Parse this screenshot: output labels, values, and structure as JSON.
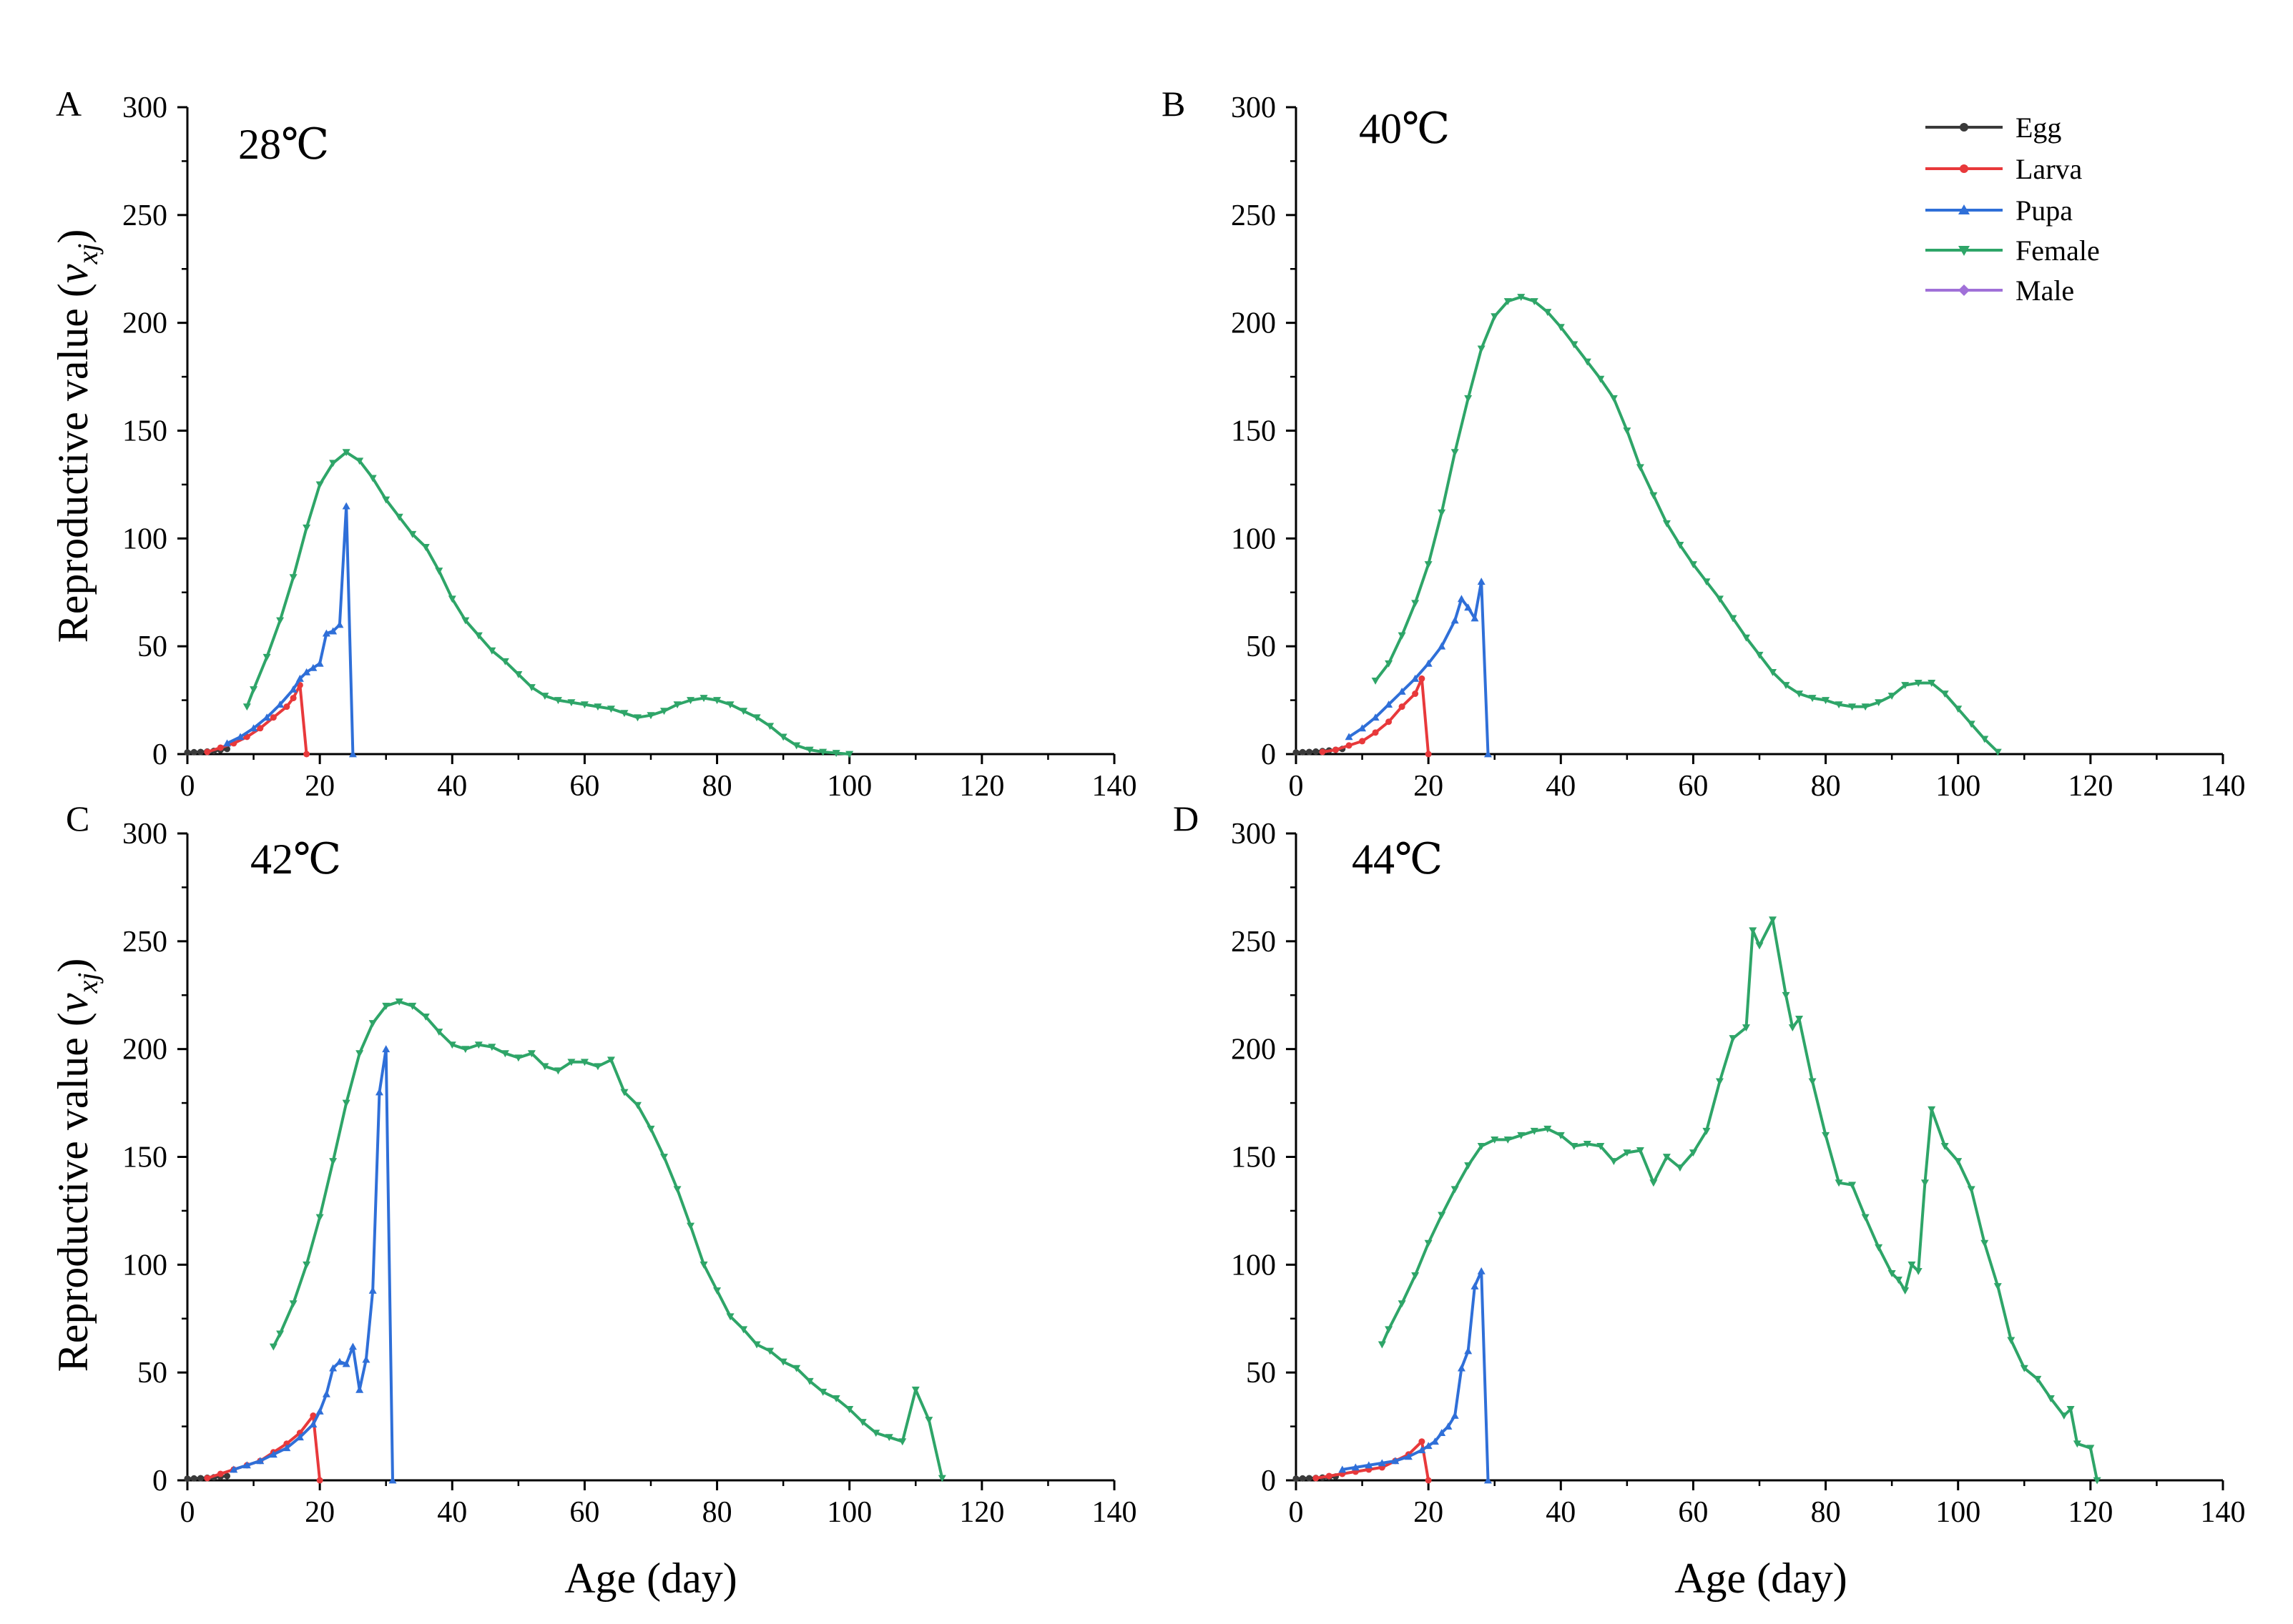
{
  "figure": {
    "ylabel_main": "Reproductive value (",
    "ylabel_var": "v",
    "ylabel_sub": "xj",
    "ylabel_close": ")",
    "xlabel": "Age (day)"
  },
  "legend": [
    {
      "name": "Egg",
      "color": "#3a3a3a",
      "marker": "circle"
    },
    {
      "name": "Larva",
      "color": "#e8393b",
      "marker": "circle"
    },
    {
      "name": "Pupa",
      "color": "#2f6fd8",
      "marker": "triangle-up"
    },
    {
      "name": "Female",
      "color": "#2ea568",
      "marker": "triangle-down"
    },
    {
      "name": "Male",
      "color": "#a070d8",
      "marker": "diamond"
    }
  ],
  "chart_data": [
    {
      "type": "line",
      "panel": "A",
      "title": "28℃",
      "xlabel": "Age (day)",
      "ylabel": "Reproductive value (vxj)",
      "xlim": [
        0,
        140
      ],
      "ylim": [
        0,
        300
      ],
      "xticks": [
        0,
        20,
        40,
        60,
        80,
        100,
        120,
        140
      ],
      "yticks": [
        0,
        50,
        100,
        150,
        200,
        250,
        300
      ],
      "series": [
        {
          "name": "Egg",
          "x": [
            0,
            1,
            2,
            3,
            4,
            5,
            6
          ],
          "y": [
            0.8,
            0.9,
            1.0,
            1.2,
            1.5,
            1.9,
            2.4
          ]
        },
        {
          "name": "Larva",
          "x": [
            3,
            5,
            7,
            9,
            11,
            13,
            15,
            16,
            17,
            18
          ],
          "y": [
            1,
            3,
            5,
            8,
            12,
            17,
            22,
            26,
            32,
            0
          ]
        },
        {
          "name": "Pupa",
          "x": [
            6,
            8,
            10,
            12,
            14,
            16,
            17,
            18,
            19,
            20,
            21,
            22,
            23,
            24,
            25
          ],
          "y": [
            5,
            8,
            12,
            17,
            23,
            30,
            35,
            38,
            40,
            42,
            56,
            57,
            60,
            115,
            0
          ]
        },
        {
          "name": "Female",
          "x": [
            9,
            10,
            12,
            14,
            16,
            18,
            20,
            22,
            24,
            26,
            28,
            30,
            32,
            34,
            36,
            38,
            40,
            42,
            44,
            46,
            48,
            50,
            52,
            54,
            56,
            58,
            60,
            62,
            64,
            66,
            68,
            70,
            72,
            74,
            76,
            78,
            80,
            82,
            84,
            86,
            88,
            90,
            92,
            94,
            96,
            98,
            100
          ],
          "y": [
            22,
            30,
            45,
            62,
            82,
            105,
            125,
            135,
            140,
            136,
            128,
            118,
            110,
            102,
            96,
            85,
            72,
            62,
            55,
            48,
            43,
            37,
            31,
            27,
            25,
            24,
            23,
            22,
            21,
            19,
            17,
            18,
            20,
            23,
            25,
            26,
            25,
            23,
            20,
            17,
            13,
            8,
            4,
            2,
            1,
            0.5,
            0
          ]
        },
        {
          "name": "Male",
          "x": [],
          "y": []
        }
      ]
    },
    {
      "type": "line",
      "panel": "B",
      "title": "40℃",
      "xlabel": "Age (day)",
      "ylabel": "Reproductive value (vxj)",
      "xlim": [
        0,
        140
      ],
      "ylim": [
        0,
        300
      ],
      "xticks": [
        0,
        20,
        40,
        60,
        80,
        100,
        120,
        140
      ],
      "yticks": [
        0,
        50,
        100,
        150,
        200,
        250,
        300
      ],
      "series": [
        {
          "name": "Egg",
          "x": [
            0,
            1,
            2,
            3,
            4,
            5,
            6,
            7
          ],
          "y": [
            0.8,
            0.9,
            1.0,
            1.2,
            1.4,
            1.7,
            2.0,
            2.4
          ]
        },
        {
          "name": "Larva",
          "x": [
            4,
            6,
            8,
            10,
            12,
            14,
            16,
            18,
            19,
            20
          ],
          "y": [
            1,
            2,
            4,
            6,
            10,
            15,
            22,
            28,
            35,
            0
          ]
        },
        {
          "name": "Pupa",
          "x": [
            8,
            10,
            12,
            14,
            16,
            18,
            20,
            22,
            24,
            25,
            26,
            27,
            28,
            29
          ],
          "y": [
            8,
            12,
            17,
            23,
            29,
            35,
            42,
            50,
            62,
            72,
            68,
            63,
            80,
            0
          ]
        },
        {
          "name": "Female",
          "x": [
            12,
            14,
            16,
            18,
            20,
            22,
            24,
            26,
            28,
            30,
            32,
            34,
            36,
            38,
            40,
            42,
            44,
            46,
            48,
            50,
            52,
            54,
            56,
            58,
            60,
            62,
            64,
            66,
            68,
            70,
            72,
            74,
            76,
            78,
            80,
            82,
            84,
            86,
            88,
            90,
            92,
            94,
            96,
            98,
            100,
            102,
            104,
            106
          ],
          "y": [
            34,
            42,
            55,
            70,
            88,
            112,
            140,
            165,
            188,
            203,
            210,
            212,
            210,
            205,
            198,
            190,
            182,
            174,
            165,
            150,
            133,
            120,
            107,
            97,
            88,
            80,
            72,
            63,
            54,
            46,
            38,
            32,
            28,
            26,
            25,
            23,
            22,
            22,
            24,
            27,
            32,
            33,
            33,
            28,
            21,
            14,
            7,
            1
          ]
        },
        {
          "name": "Male",
          "x": [],
          "y": []
        }
      ]
    },
    {
      "type": "line",
      "panel": "C",
      "title": "42℃",
      "xlabel": "Age (day)",
      "ylabel": "Reproductive value (vxj)",
      "xlim": [
        0,
        140
      ],
      "ylim": [
        0,
        300
      ],
      "xticks": [
        0,
        20,
        40,
        60,
        80,
        100,
        120,
        140
      ],
      "yticks": [
        0,
        50,
        100,
        150,
        200,
        250,
        300
      ],
      "series": [
        {
          "name": "Egg",
          "x": [
            0,
            1,
            2,
            3,
            4,
            5,
            6
          ],
          "y": [
            0.8,
            0.9,
            1.0,
            1.2,
            1.4,
            1.7,
            2.0
          ]
        },
        {
          "name": "Larva",
          "x": [
            3,
            5,
            7,
            9,
            11,
            13,
            15,
            17,
            19,
            20
          ],
          "y": [
            1,
            3,
            5,
            7,
            9,
            13,
            17,
            22,
            30,
            0
          ]
        },
        {
          "name": "Pupa",
          "x": [
            7,
            9,
            11,
            13,
            15,
            17,
            19,
            20,
            21,
            22,
            23,
            24,
            25,
            26,
            27,
            28,
            29,
            30,
            31
          ],
          "y": [
            5,
            7,
            9,
            12,
            15,
            20,
            26,
            32,
            40,
            52,
            55,
            54,
            62,
            42,
            56,
            88,
            180,
            200,
            0
          ]
        },
        {
          "name": "Female",
          "x": [
            13,
            14,
            16,
            18,
            20,
            22,
            24,
            26,
            28,
            30,
            32,
            34,
            36,
            38,
            40,
            42,
            44,
            46,
            48,
            50,
            52,
            54,
            56,
            58,
            60,
            62,
            64,
            66,
            68,
            70,
            72,
            74,
            76,
            78,
            80,
            82,
            84,
            86,
            88,
            90,
            92,
            94,
            96,
            98,
            100,
            102,
            104,
            106,
            108,
            110,
            112,
            114
          ],
          "y": [
            62,
            68,
            82,
            100,
            122,
            148,
            175,
            198,
            212,
            220,
            222,
            220,
            215,
            208,
            202,
            200,
            202,
            201,
            198,
            196,
            198,
            192,
            190,
            194,
            194,
            192,
            195,
            180,
            174,
            163,
            150,
            135,
            118,
            100,
            88,
            76,
            70,
            63,
            60,
            55,
            52,
            46,
            41,
            38,
            33,
            27,
            22,
            20,
            18,
            42,
            28,
            1
          ]
        },
        {
          "name": "Male",
          "x": [],
          "y": []
        }
      ]
    },
    {
      "type": "line",
      "panel": "D",
      "title": "44℃",
      "xlabel": "Age (day)",
      "ylabel": "Reproductive value (vxj)",
      "xlim": [
        0,
        140
      ],
      "ylim": [
        0,
        300
      ],
      "xticks": [
        0,
        20,
        40,
        60,
        80,
        100,
        120,
        140
      ],
      "yticks": [
        0,
        50,
        100,
        150,
        200,
        250,
        300
      ],
      "series": [
        {
          "name": "Egg",
          "x": [
            0,
            1,
            2,
            3,
            4,
            5,
            6
          ],
          "y": [
            0.8,
            0.9,
            1.0,
            1.1,
            1.3,
            1.5,
            1.8
          ]
        },
        {
          "name": "Larva",
          "x": [
            3,
            5,
            7,
            9,
            11,
            13,
            15,
            17,
            19,
            20
          ],
          "y": [
            1,
            2,
            3,
            4,
            5,
            6,
            9,
            12,
            18,
            0
          ]
        },
        {
          "name": "Pupa",
          "x": [
            7,
            9,
            11,
            13,
            15,
            17,
            19,
            20,
            21,
            22,
            23,
            24,
            25,
            26,
            27,
            28,
            29
          ],
          "y": [
            5,
            6,
            7,
            8,
            9,
            11,
            14,
            16,
            18,
            22,
            25,
            30,
            52,
            60,
            90,
            97,
            0
          ]
        },
        {
          "name": "Female",
          "x": [
            13,
            14,
            16,
            18,
            20,
            22,
            24,
            26,
            28,
            30,
            32,
            34,
            36,
            38,
            40,
            42,
            44,
            46,
            48,
            50,
            52,
            54,
            56,
            58,
            60,
            62,
            64,
            66,
            68,
            69,
            70,
            72,
            74,
            75,
            76,
            78,
            80,
            82,
            84,
            86,
            88,
            90,
            91,
            92,
            93,
            94,
            95,
            96,
            98,
            100,
            102,
            104,
            106,
            108,
            110,
            112,
            114,
            116,
            117,
            118,
            120,
            121
          ],
          "y": [
            63,
            70,
            82,
            95,
            110,
            123,
            135,
            146,
            155,
            158,
            158,
            160,
            162,
            163,
            160,
            155,
            156,
            155,
            148,
            152,
            153,
            138,
            150,
            145,
            152,
            162,
            185,
            205,
            210,
            255,
            248,
            260,
            225,
            210,
            214,
            185,
            160,
            138,
            137,
            122,
            108,
            96,
            93,
            88,
            100,
            97,
            138,
            172,
            155,
            148,
            135,
            110,
            90,
            65,
            52,
            47,
            38,
            30,
            33,
            17,
            15,
            0
          ]
        },
        {
          "name": "Male",
          "x": [],
          "y": []
        }
      ]
    }
  ]
}
